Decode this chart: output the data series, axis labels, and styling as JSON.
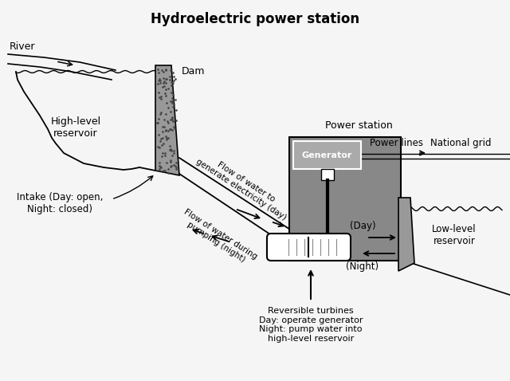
{
  "title": "Hydroelectric power station",
  "title_fontsize": 12,
  "bg_color": "#f5f5f5",
  "dam_color": "#999999",
  "ps_color": "#888888",
  "gen_color": "#aaaaaa",
  "turbine_color": "#eeeeee",
  "text_color": "#000000",
  "labels": {
    "river": "River",
    "dam": "Dam",
    "high_reservoir": "High-level\nreservoir",
    "intake": "Intake (Day: open,\nNight: closed)",
    "flow_day": "Flow of water to\ngenerate electricity (day)",
    "flow_night": "Flow of water during\npumping (night)",
    "power_station": "Power station",
    "generator": "Generator",
    "power_lines_arrow": "Power lines → National grid",
    "day_label": "(Day)",
    "night_label": "(Night)",
    "low_reservoir": "Low-level\nreservoir",
    "turbines": "Reversible turbines\nDay: operate generator\nNight: pump water into\nhigh-level reservoir"
  }
}
